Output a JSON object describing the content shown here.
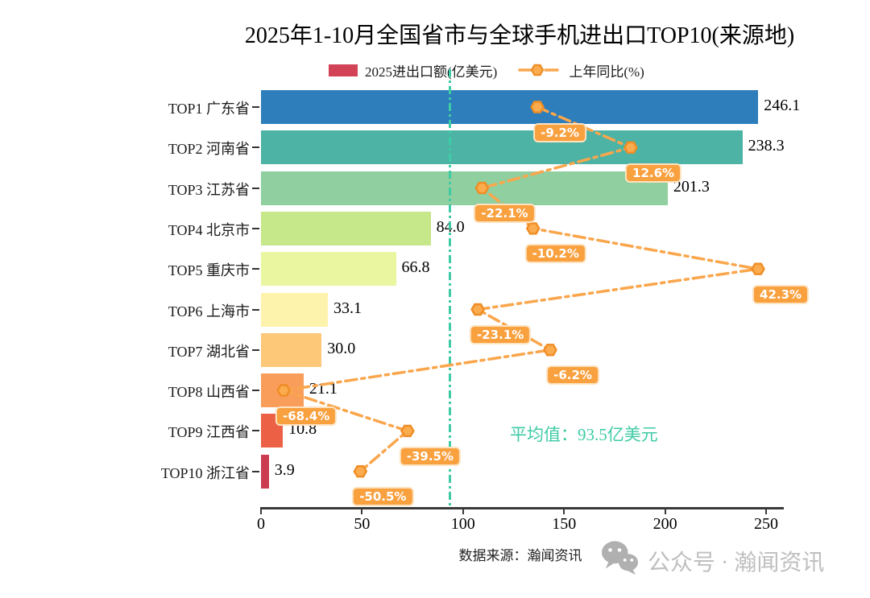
{
  "title": "2025年1-10月全国省市与全球手机进出口TOP10(来源地)",
  "legend": {
    "bar_label": "2025进出口额(亿美元)",
    "line_label": "上年同比(%)"
  },
  "chart_data": {
    "type": "bar",
    "orientation": "horizontal",
    "categories": [
      "TOP1 广东省",
      "TOP2 河南省",
      "TOP3 江苏省",
      "TOP4 北京市",
      "TOP5 重庆市",
      "TOP6 上海市",
      "TOP7 湖北省",
      "TOP8 山西省",
      "TOP9 江西省",
      "TOP10 浙江省"
    ],
    "series": [
      {
        "name": "2025进出口额(亿美元)",
        "values": [
          246.1,
          238.3,
          201.3,
          84.0,
          66.8,
          33.1,
          30.0,
          21.1,
          10.8,
          3.9
        ],
        "labels": [
          "246.1",
          "238.3",
          "201.3",
          "84.0",
          "66.8",
          "33.1",
          "30.0",
          "21.1",
          "10.8",
          "3.9"
        ]
      },
      {
        "name": "上年同比(%)",
        "values": [
          -9.2,
          12.6,
          -22.1,
          -10.2,
          42.3,
          -23.1,
          -6.2,
          -68.4,
          -39.5,
          -50.5
        ],
        "labels": [
          "-9.2%",
          "12.6%",
          "-22.1%",
          "-10.2%",
          "42.3%",
          "-23.1%",
          "-6.2%",
          "-68.4%",
          "-39.5%",
          "-50.5%"
        ]
      }
    ],
    "xlim": [
      0,
      250
    ],
    "x_ticks": [
      0,
      50,
      100,
      150,
      200,
      250
    ],
    "grid": false,
    "legend_position": "top",
    "bar_colors": [
      "#2e7ebc",
      "#4db3a5",
      "#8fcfa0",
      "#c6e78a",
      "#ebf7a0",
      "#fef3ac",
      "#fdc877",
      "#f99d5b",
      "#ec6146",
      "#cc3c50"
    ],
    "mean": {
      "value": 93.5,
      "label": "平均值：93.5亿美元"
    },
    "colors": {
      "trend_line": "#f9a64c",
      "marker_fill": "#fbac4e",
      "marker_stroke": "#ef8d25",
      "badge_bg": "#f9a03f",
      "badge_border": "#fde3c0",
      "badge_text": "#ffffff",
      "legend_bar_swatch": "#d24358",
      "mean": "#3ecba5",
      "axis": "#3a3a3a",
      "watermark": "#bfbfbf",
      "watermark_icon": "#b0b0b0"
    }
  },
  "footer": {
    "source": "数据来源：瀚闻资讯",
    "watermark": "公众号 · 瀚闻资讯"
  }
}
